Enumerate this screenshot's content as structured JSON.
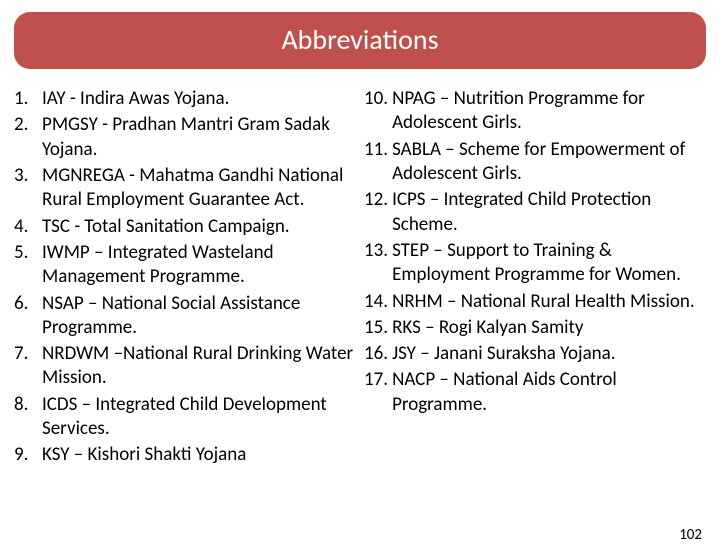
{
  "title": "Abbreviations",
  "colors": {
    "title_bg": "#c0504d",
    "title_text": "#ffffff",
    "body_text": "#000000",
    "page_bg": "#ffffff"
  },
  "typography": {
    "title_fontsize": 28,
    "body_fontsize": 19,
    "font_family": "Calibri"
  },
  "left_start": 1,
  "right_start": 10,
  "left": [
    "IAY - Indira Awas Yojana.",
    "PMGSY - Pradhan Mantri Gram Sadak Yojana.",
    "MGNREGA - Mahatma Gandhi National Rural Employment Guarantee Act.",
    "TSC - Total Sanitation Campaign.",
    "IWMP – Integrated Wasteland Management Programme.",
    "NSAP – National Social Assistance Programme.",
    "NRDWM –National Rural Drinking Water Mission.",
    "ICDS – Integrated Child Development Services.",
    "KSY – Kishori Shakti Yojana"
  ],
  "right": [
    "NPAG – Nutrition Programme for Adolescent Girls.",
    "SABLA –  Scheme for Empowerment of Adolescent Girls.",
    "ICPS – Integrated Child Protection Scheme.",
    "STEP – Support to Training & Employment Programme for Women.",
    "NRHM – National Rural Health Mission.",
    "RKS – Rogi Kalyan Samity",
    "JSY –  Janani Suraksha Yojana.",
    "NACP –  National Aids Control Programme."
  ],
  "page_number": "102"
}
